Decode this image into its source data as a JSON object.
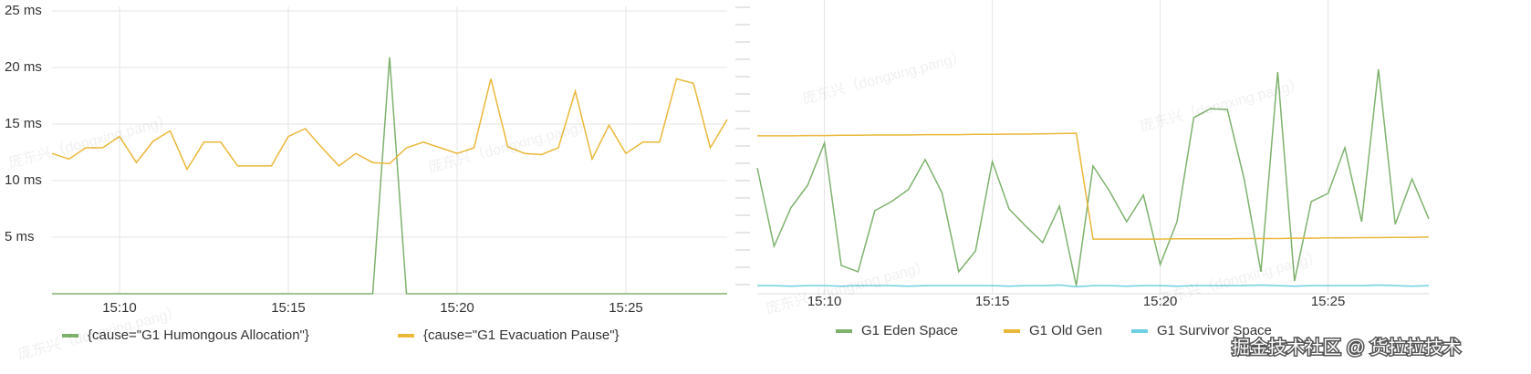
{
  "chart_data": [
    {
      "type": "line",
      "categories": [
        null,
        null,
        null,
        null,
        "15:10",
        null,
        null,
        null,
        null,
        null,
        null,
        null,
        null,
        null,
        "15:15",
        null,
        null,
        null,
        null,
        null,
        null,
        null,
        null,
        null,
        "15:20",
        null,
        null,
        null,
        null,
        null,
        null,
        null,
        null,
        null,
        "15:25",
        null,
        null,
        null,
        null,
        null,
        null
      ],
      "series": [
        {
          "name": "{cause=\"G1 Humongous Allocation\"}",
          "color": "#7eb26d",
          "values": [
            0,
            0,
            0,
            0,
            0,
            0,
            0,
            0,
            0,
            0,
            0,
            0,
            0,
            0,
            0,
            0,
            0,
            0,
            0,
            0,
            20.9,
            0,
            0,
            0,
            0,
            0,
            0,
            0,
            0,
            0,
            0,
            0,
            0,
            0,
            0,
            0,
            0,
            0,
            0,
            0,
            0
          ]
        },
        {
          "name": "{cause=\"G1 Evacuation Pause\"}",
          "color": "#eab839",
          "values": [
            12.4,
            11.9,
            12.9,
            12.9,
            13.9,
            11.6,
            13.5,
            14.4,
            11.0,
            13.4,
            13.4,
            11.3,
            11.3,
            11.3,
            13.9,
            14.6,
            12.9,
            11.3,
            12.4,
            11.6,
            11.5,
            12.9,
            13.4,
            12.9,
            12.4,
            12.9,
            19.0,
            13.0,
            12.4,
            12.3,
            12.9,
            17.9,
            11.9,
            14.9,
            12.4,
            13.4,
            13.4,
            19.0,
            18.6,
            12.9,
            15.4
          ]
        }
      ],
      "ylim": [
        0,
        25
      ],
      "yticks": [
        {
          "value": 5,
          "label": "5 ms"
        },
        {
          "value": 10,
          "label": "10 ms"
        },
        {
          "value": 15,
          "label": "15 ms"
        },
        {
          "value": 20,
          "label": "20 ms"
        },
        {
          "value": 25,
          "label": "25 ms"
        }
      ],
      "grid": true
    },
    {
      "type": "line",
      "categories": [
        null,
        null,
        null,
        null,
        "15:10",
        null,
        null,
        null,
        null,
        null,
        null,
        null,
        null,
        null,
        "15:15",
        null,
        null,
        null,
        null,
        null,
        null,
        null,
        null,
        null,
        "15:20",
        null,
        null,
        null,
        null,
        null,
        null,
        null,
        null,
        null,
        "15:25",
        null,
        null,
        null,
        null,
        null,
        null
      ],
      "series": [
        {
          "name": "G1 Eden Space",
          "color": "#7eb26d",
          "values": [
            43.5,
            16.4,
            29.7,
            37.5,
            52.1,
            9.8,
            7.6,
            28.7,
            31.9,
            36.0,
            46.4,
            35.0,
            7.6,
            14.8,
            45.7,
            29.3,
            23.3,
            17.7,
            30.3,
            2.8,
            44.2,
            35.3,
            24.9,
            34.1,
            10.1,
            24.9,
            60.9,
            64.0,
            63.7,
            39.7,
            7.6,
            76.7,
            4.4,
            31.9,
            34.7,
            50.5,
            24.9,
            77.6,
            24.0,
            39.7,
            25.9
          ]
        },
        {
          "name": "G1 Old Gen",
          "color": "#eab839",
          "values": [
            54.6,
            54.6,
            54.6,
            54.7,
            54.7,
            54.8,
            54.8,
            54.9,
            54.9,
            54.9,
            55.0,
            55.0,
            55.0,
            55.1,
            55.1,
            55.2,
            55.2,
            55.3,
            55.4,
            55.5,
            18.9,
            18.9,
            18.9,
            18.9,
            18.9,
            19.0,
            19.0,
            19.0,
            19.0,
            19.1,
            19.1,
            19.1,
            19.2,
            19.2,
            19.3,
            19.3,
            19.4,
            19.4,
            19.5,
            19.5,
            19.6
          ]
        },
        {
          "name": "G1 Survivor Space",
          "color": "#6ed0e0",
          "values": [
            2.8,
            2.8,
            2.6,
            2.8,
            2.8,
            2.6,
            2.8,
            2.8,
            2.8,
            2.6,
            2.8,
            2.8,
            2.8,
            2.8,
            2.8,
            2.6,
            2.8,
            2.8,
            3.0,
            2.4,
            2.8,
            2.8,
            2.6,
            2.8,
            2.8,
            2.6,
            2.8,
            2.8,
            2.8,
            2.8,
            3.0,
            2.8,
            2.6,
            2.8,
            2.8,
            2.8,
            2.8,
            3.0,
            2.8,
            2.6,
            2.8
          ]
        }
      ],
      "ylim": [
        0,
        100
      ],
      "grid": true
    }
  ],
  "watermark": "庞东兴（dongxing.pang）",
  "site_watermark": "掘金技术社区 @ 货拉拉技术"
}
